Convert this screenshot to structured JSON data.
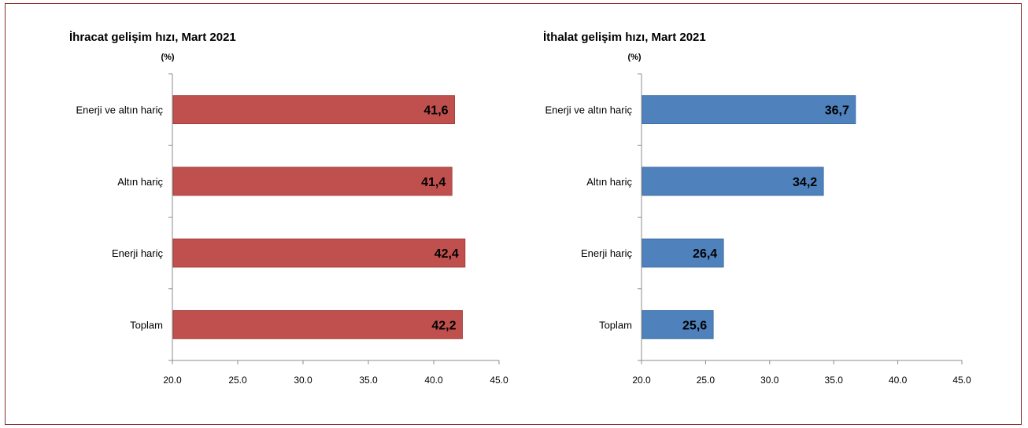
{
  "chart_data": [
    {
      "type": "bar",
      "orientation": "horizontal",
      "title": "İhracat gelişim hızı, Mart 2021",
      "unit_label": "(%)",
      "categories": [
        "Enerji ve altın hariç",
        "Altın hariç",
        "Enerji hariç",
        "Toplam"
      ],
      "values": [
        41.6,
        41.4,
        42.4,
        42.2
      ],
      "value_labels": [
        "41,6",
        "41,4",
        "42,4",
        "42,2"
      ],
      "xlim": [
        20.0,
        45.0
      ],
      "ticks": [
        20.0,
        25.0,
        30.0,
        35.0,
        40.0,
        45.0
      ],
      "tick_labels": [
        "20.0",
        "25.0",
        "30.0",
        "35.0",
        "40.0",
        "45.0"
      ],
      "color": "#C0504D"
    },
    {
      "type": "bar",
      "orientation": "horizontal",
      "title": "İthalat gelişim hızı, Mart 2021",
      "unit_label": "(%)",
      "categories": [
        "Enerji ve altın hariç",
        "Altın hariç",
        "Enerji hariç",
        "Toplam"
      ],
      "values": [
        36.7,
        34.2,
        26.4,
        25.6
      ],
      "value_labels": [
        "36,7",
        "34,2",
        "26,4",
        "25,6"
      ],
      "xlim": [
        20.0,
        45.0
      ],
      "ticks": [
        20.0,
        25.0,
        30.0,
        35.0,
        40.0,
        45.0
      ],
      "tick_labels": [
        "20.0",
        "25.0",
        "30.0",
        "35.0",
        "40.0",
        "45.0"
      ],
      "color": "#4F81BD"
    }
  ]
}
